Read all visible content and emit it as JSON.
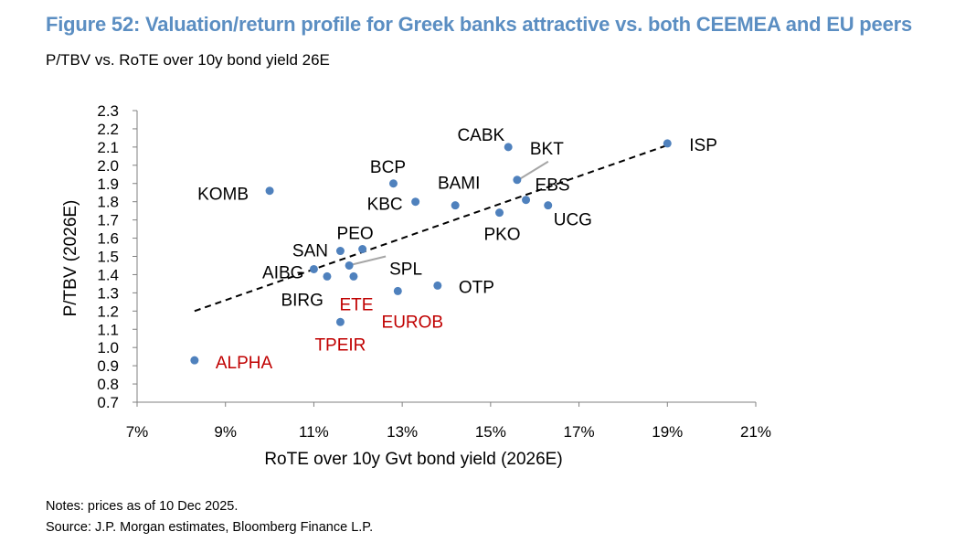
{
  "title": "Figure 52: Valuation/return profile for Greek banks attractive vs. both CEEMEA and EU peers",
  "subtitle": "P/TBV vs. RoTE over 10y bond yield 26E",
  "notes": [
    "Notes: prices as of 10 Dec 2025.",
    "Source: J.P. Morgan estimates, Bloomberg Finance L.P."
  ],
  "colors": {
    "title": "#5b8ec2",
    "marker": "#4f81bd",
    "label_default": "#000000",
    "label_greek": "#c00000",
    "axis": "#808080",
    "leader_line": "#a6a6a6",
    "trendline": "#000000"
  },
  "chart_data": {
    "type": "scatter",
    "xlabel": "RoTE over 10y Gvt bond yield (2026E)",
    "ylabel": "P/TBV (2026E)",
    "xlim": [
      0.07,
      0.21
    ],
    "ylim": [
      0.7,
      2.3
    ],
    "x_ticks": [
      0.07,
      0.09,
      0.11,
      0.13,
      0.15,
      0.17,
      0.19,
      0.21
    ],
    "x_tick_labels": [
      "7%",
      "9%",
      "11%",
      "13%",
      "15%",
      "17%",
      "19%",
      "21%"
    ],
    "y_ticks": [
      0.7,
      0.8,
      0.9,
      1.0,
      1.1,
      1.2,
      1.3,
      1.4,
      1.5,
      1.6,
      1.7,
      1.8,
      1.9,
      2.0,
      2.1,
      2.2,
      2.3
    ],
    "y_tick_labels": [
      "0.7",
      "0.8",
      "0.9",
      "1.0",
      "1.1",
      "1.2",
      "1.3",
      "1.4",
      "1.5",
      "1.6",
      "1.7",
      "1.8",
      "1.9",
      "2.0",
      "2.1",
      "2.2",
      "2.3"
    ],
    "grid": false,
    "trendline": {
      "style": "dashed",
      "from": [
        0.083,
        1.2
      ],
      "to": [
        0.19,
        2.11
      ]
    },
    "points": [
      {
        "label": "ISP",
        "x": 0.19,
        "y": 2.12,
        "greek": false
      },
      {
        "label": "CABK",
        "x": 0.154,
        "y": 2.1,
        "greek": false
      },
      {
        "label": "BKT",
        "x": 0.156,
        "y": 1.92,
        "greek": false
      },
      {
        "label": "BCP",
        "x": 0.128,
        "y": 1.9,
        "greek": false
      },
      {
        "label": "KOMB",
        "x": 0.1,
        "y": 1.86,
        "greek": false
      },
      {
        "label": "BAMI",
        "x": 0.142,
        "y": 1.78,
        "greek": false
      },
      {
        "label": "EBS",
        "x": 0.158,
        "y": 1.81,
        "greek": false
      },
      {
        "label": "KBC",
        "x": 0.133,
        "y": 1.8,
        "greek": false
      },
      {
        "label": "UCG",
        "x": 0.163,
        "y": 1.78,
        "greek": false
      },
      {
        "label": "PKO",
        "x": 0.152,
        "y": 1.74,
        "greek": false
      },
      {
        "label": "PEO",
        "x": 0.121,
        "y": 1.54,
        "greek": false
      },
      {
        "label": "SAN",
        "x": 0.116,
        "y": 1.53,
        "greek": false
      },
      {
        "label": "SPL",
        "x": 0.118,
        "y": 1.45,
        "greek": false
      },
      {
        "label": "AIBG",
        "x": 0.11,
        "y": 1.43,
        "greek": false
      },
      {
        "label": "BIRG",
        "x": 0.113,
        "y": 1.39,
        "greek": false
      },
      {
        "label": "ETE",
        "x": 0.119,
        "y": 1.39,
        "greek": true
      },
      {
        "label": "OTP",
        "x": 0.138,
        "y": 1.34,
        "greek": false
      },
      {
        "label": "EUROB",
        "x": 0.129,
        "y": 1.31,
        "greek": true
      },
      {
        "label": "TPEIR",
        "x": 0.116,
        "y": 1.14,
        "greek": true
      },
      {
        "label": "ALPHA",
        "x": 0.083,
        "y": 0.93,
        "greek": true
      }
    ]
  }
}
